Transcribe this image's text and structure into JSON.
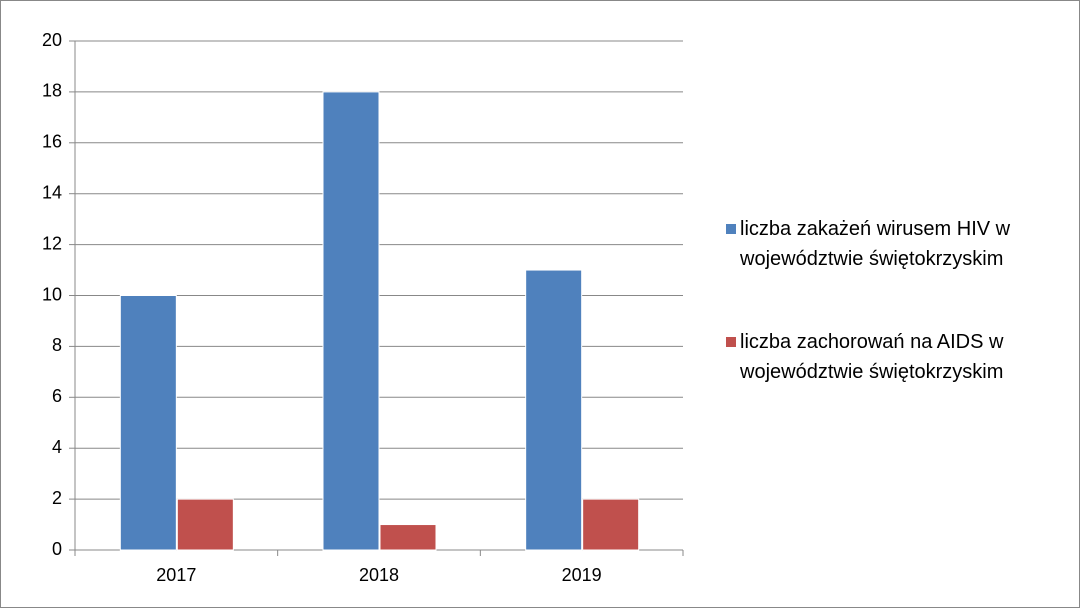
{
  "chart_data": {
    "type": "bar",
    "categories": [
      "2017",
      "2018",
      "2019"
    ],
    "series": [
      {
        "name": "liczba zakażeń wirusem HIV w województwie świętokrzyskim",
        "color": "#4f81bd",
        "values": [
          10,
          18,
          11
        ]
      },
      {
        "name": "liczba zachorowań na AIDS w województwie świętokrzyskim",
        "color": "#c0504d",
        "values": [
          2,
          1,
          2
        ]
      }
    ],
    "ylim": [
      0,
      20
    ],
    "yticks": [
      0,
      2,
      4,
      6,
      8,
      10,
      12,
      14,
      16,
      18,
      20
    ],
    "grid": true,
    "legend": "right"
  }
}
